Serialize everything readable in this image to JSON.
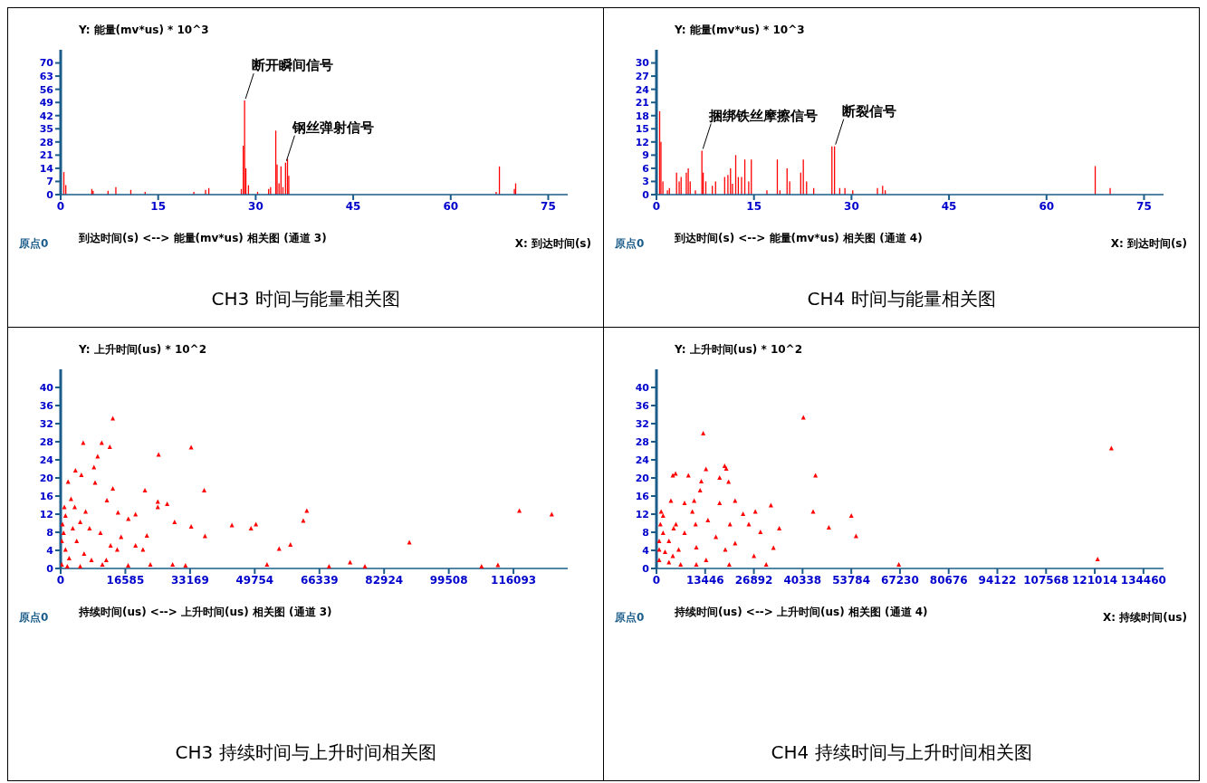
{
  "chart_data": [
    {
      "type": "bar",
      "title": "CH3 时间与能量相关图",
      "ylabel": "Y: 能量(mv*us) * 10^3",
      "xlabel": "到达时间(s) <--> 能量(mv*us) 相关图 (通道 3)",
      "annotations": [
        {
          "text": "断开瞬间信号",
          "x": 28.3,
          "y": 50
        },
        {
          "text": "钢丝弹射信号",
          "x": 34.6,
          "y": 17
        },
        "原点0",
        "X: 到达时间(s)"
      ],
      "color": "#ff0000",
      "xlim": [
        0,
        78
      ],
      "ylim": [
        0,
        77
      ],
      "xticks": [
        0,
        15,
        30,
        45,
        60,
        75
      ],
      "yticks": [
        0,
        7,
        14,
        21,
        28,
        35,
        42,
        49,
        56,
        63,
        70
      ],
      "x": [
        0.5,
        0.8,
        4.8,
        5,
        7.3,
        8.5,
        10.8,
        13,
        20.5,
        22.3,
        22.8,
        27.8,
        28.1,
        28.3,
        28.5,
        28.9,
        30.3,
        32,
        32.3,
        33.1,
        33.3,
        33.6,
        33.9,
        34.2,
        34.6,
        34.9,
        35.1,
        67,
        67.5,
        69.8,
        70
      ],
      "values": [
        12,
        5,
        3,
        2,
        2,
        4,
        2.5,
        1.5,
        1.5,
        2.5,
        3.5,
        3,
        26,
        50,
        14,
        5,
        1.5,
        3,
        4,
        34,
        16,
        6,
        15,
        4,
        17,
        19,
        10,
        1.5,
        15,
        3,
        6
      ]
    },
    {
      "type": "bar",
      "title": "CH4 时间与能量相关图",
      "ylabel": "Y: 能量(mv*us) * 10^3",
      "xlabel": "到达时间(s) <--> 能量(mv*us) 相关图 (通道 4)",
      "annotations": [
        {
          "text": "捆绑铁丝摩擦信号",
          "x": 7,
          "y": 10
        },
        {
          "text": "断裂信号",
          "x": 27.4,
          "y": 11
        },
        "原点0",
        "X: 到达时间(s)"
      ],
      "color": "#ff0000",
      "xlim": [
        0,
        78
      ],
      "ylim": [
        0,
        33
      ],
      "xticks": [
        0,
        15,
        30,
        45,
        60,
        75
      ],
      "yticks": [
        0,
        3,
        6,
        9,
        12,
        15,
        18,
        21,
        24,
        27,
        30
      ],
      "x": [
        0.5,
        0.7,
        1,
        1.7,
        2,
        3.1,
        3.5,
        3.8,
        4.6,
        4.9,
        5.2,
        6,
        7,
        7.2,
        7.6,
        8.6,
        9.1,
        10.5,
        11,
        11.4,
        11.7,
        12.2,
        12.6,
        13.1,
        13.6,
        14.2,
        14.6,
        17,
        18.6,
        19,
        20.1,
        20.5,
        22.2,
        22.6,
        23.1,
        24.2,
        27,
        27.4,
        28.2,
        29,
        30.2,
        34,
        34.8,
        35.2,
        67.5,
        69.8
      ],
      "values": [
        19,
        12,
        3,
        1,
        1.5,
        5,
        3,
        4,
        5,
        6,
        3,
        1,
        10,
        5,
        3,
        2,
        3,
        4,
        4.5,
        6,
        2.5,
        9,
        4,
        4,
        8,
        3,
        8,
        1,
        8,
        1,
        6,
        3,
        5,
        8,
        3,
        1.5,
        11,
        11,
        1.5,
        1.5,
        1,
        1.5,
        2,
        1,
        6.5,
        1.5
      ]
    },
    {
      "type": "scatter",
      "title": "CH3 持续时间与上升时间相关图",
      "ylabel": "Y: 上升时间(us) * 10^2",
      "xlabel": "持续时间(us) <--> 上升时间(us) 相关图 (通道 3)",
      "annotations": [
        "原点0"
      ],
      "color": "#ff0000",
      "marker": "triangle",
      "xlim": [
        0,
        130000
      ],
      "ylim": [
        0,
        44
      ],
      "xticks": [
        0,
        16585,
        33169,
        49754,
        66339,
        82924,
        99508,
        116093
      ],
      "yticks": [
        0,
        4,
        8,
        12,
        16,
        20,
        24,
        28,
        32,
        36,
        40
      ],
      "x": [
        13370,
        5780,
        10520,
        12600,
        9480,
        8530,
        3790,
        5310,
        1900,
        8820,
        13370,
        21600,
        11850,
        24900,
        27300,
        24900,
        14700,
        19200,
        17350,
        29200,
        33460,
        37000,
        43900,
        48800,
        50050,
        63100,
        62200,
        58900,
        56000,
        36800,
        33460,
        25100,
        89400,
        74200,
        78000,
        68800,
        112100,
        107900,
        117600,
        125900,
        52900,
        22100,
        19200,
        21100,
        14500,
        12800,
        15500,
        10200,
        7400,
        5000,
        6400,
        3600,
        2650,
        1230,
        760,
        1230,
        2180,
        4100,
        6000,
        7900,
        280,
        1700,
        5000,
        10700,
        17300,
        23000,
        28700,
        32000,
        11700,
        3100,
        280,
        470,
        950
      ],
      "values": [
        33.2,
        27.8,
        27.8,
        26.9,
        24.8,
        22.4,
        21.7,
        20.7,
        19.2,
        19,
        17.7,
        17.3,
        15.1,
        14.8,
        14.3,
        13.6,
        12.4,
        12,
        11,
        10.3,
        9.3,
        7.2,
        9.6,
        8.9,
        9.8,
        12.8,
        10.6,
        5.3,
        4.4,
        17.3,
        26.8,
        25.2,
        5.8,
        1.4,
        0.5,
        0.5,
        0.8,
        0.5,
        12.8,
        12,
        0.9,
        7.3,
        5.1,
        4.2,
        4.2,
        5.1,
        7,
        7.9,
        8.9,
        10.3,
        12.6,
        13.6,
        15.4,
        11.7,
        7.9,
        4.2,
        2.3,
        6.1,
        3.3,
        1.9,
        0.9,
        0.5,
        0.5,
        0.9,
        0.7,
        0.9,
        0.9,
        0.7,
        1.9,
        8.9,
        6.1,
        9.8,
        13.6
      ]
    },
    {
      "type": "scatter",
      "title": "CH4 持续时间与上升时间相关图",
      "ylabel": "Y: 上升时间(us) * 10^2",
      "xlabel": "持续时间(us) <--> 上升时间(us) 相关图 (通道 4)",
      "annotations": [
        "原点0",
        "X: 持续时间(us)"
      ],
      "color": "#ff0000",
      "marker": "triangle",
      "xlim": [
        0,
        140000
      ],
      "ylim": [
        0,
        44
      ],
      "xticks": [
        0,
        13446,
        26892,
        40338,
        53784,
        67230,
        80676,
        94122,
        107568,
        121014,
        134460
      ],
      "yticks": [
        0,
        4,
        8,
        12,
        16,
        20,
        24,
        28,
        32,
        36,
        40
      ],
      "x": [
        40560,
        12900,
        125600,
        13670,
        18830,
        19260,
        43900,
        4520,
        5270,
        8820,
        17430,
        19900,
        12370,
        12050,
        21700,
        31600,
        17430,
        10400,
        7750,
        3980,
        43250,
        53800,
        27300,
        23900,
        47600,
        33900,
        55100,
        28700,
        25500,
        20300,
        14200,
        10800,
        7750,
        5380,
        1300,
        1080,
        1830,
        3440,
        6130,
        11000,
        16400,
        19000,
        21700,
        26900,
        32300,
        30300,
        13700,
        11000,
        6670,
        3440,
        750,
        750,
        2370,
        4520,
        20100,
        66900,
        121800,
        1830,
        750,
        9900,
        4730
      ],
      "values": [
        33.4,
        29.9,
        26.6,
        22,
        22.7,
        22.1,
        20.6,
        20.6,
        21,
        20.6,
        20.1,
        19.2,
        19.3,
        17.3,
        15,
        14,
        14.5,
        15,
        14.5,
        15,
        12.6,
        11.7,
        12.6,
        12.1,
        9.1,
        8.9,
        7.2,
        8.1,
        9.8,
        9.8,
        10.7,
        9.8,
        7.9,
        9.8,
        12.6,
        9.8,
        7.9,
        6.1,
        4.2,
        4.7,
        7,
        4.2,
        5.6,
        2.8,
        4.6,
        0.9,
        1.9,
        0.9,
        0.9,
        1.4,
        1.9,
        4.2,
        3.7,
        2.8,
        0.9,
        0.9,
        2.1,
        11.7,
        6.1,
        12.6,
        8.9
      ]
    }
  ]
}
